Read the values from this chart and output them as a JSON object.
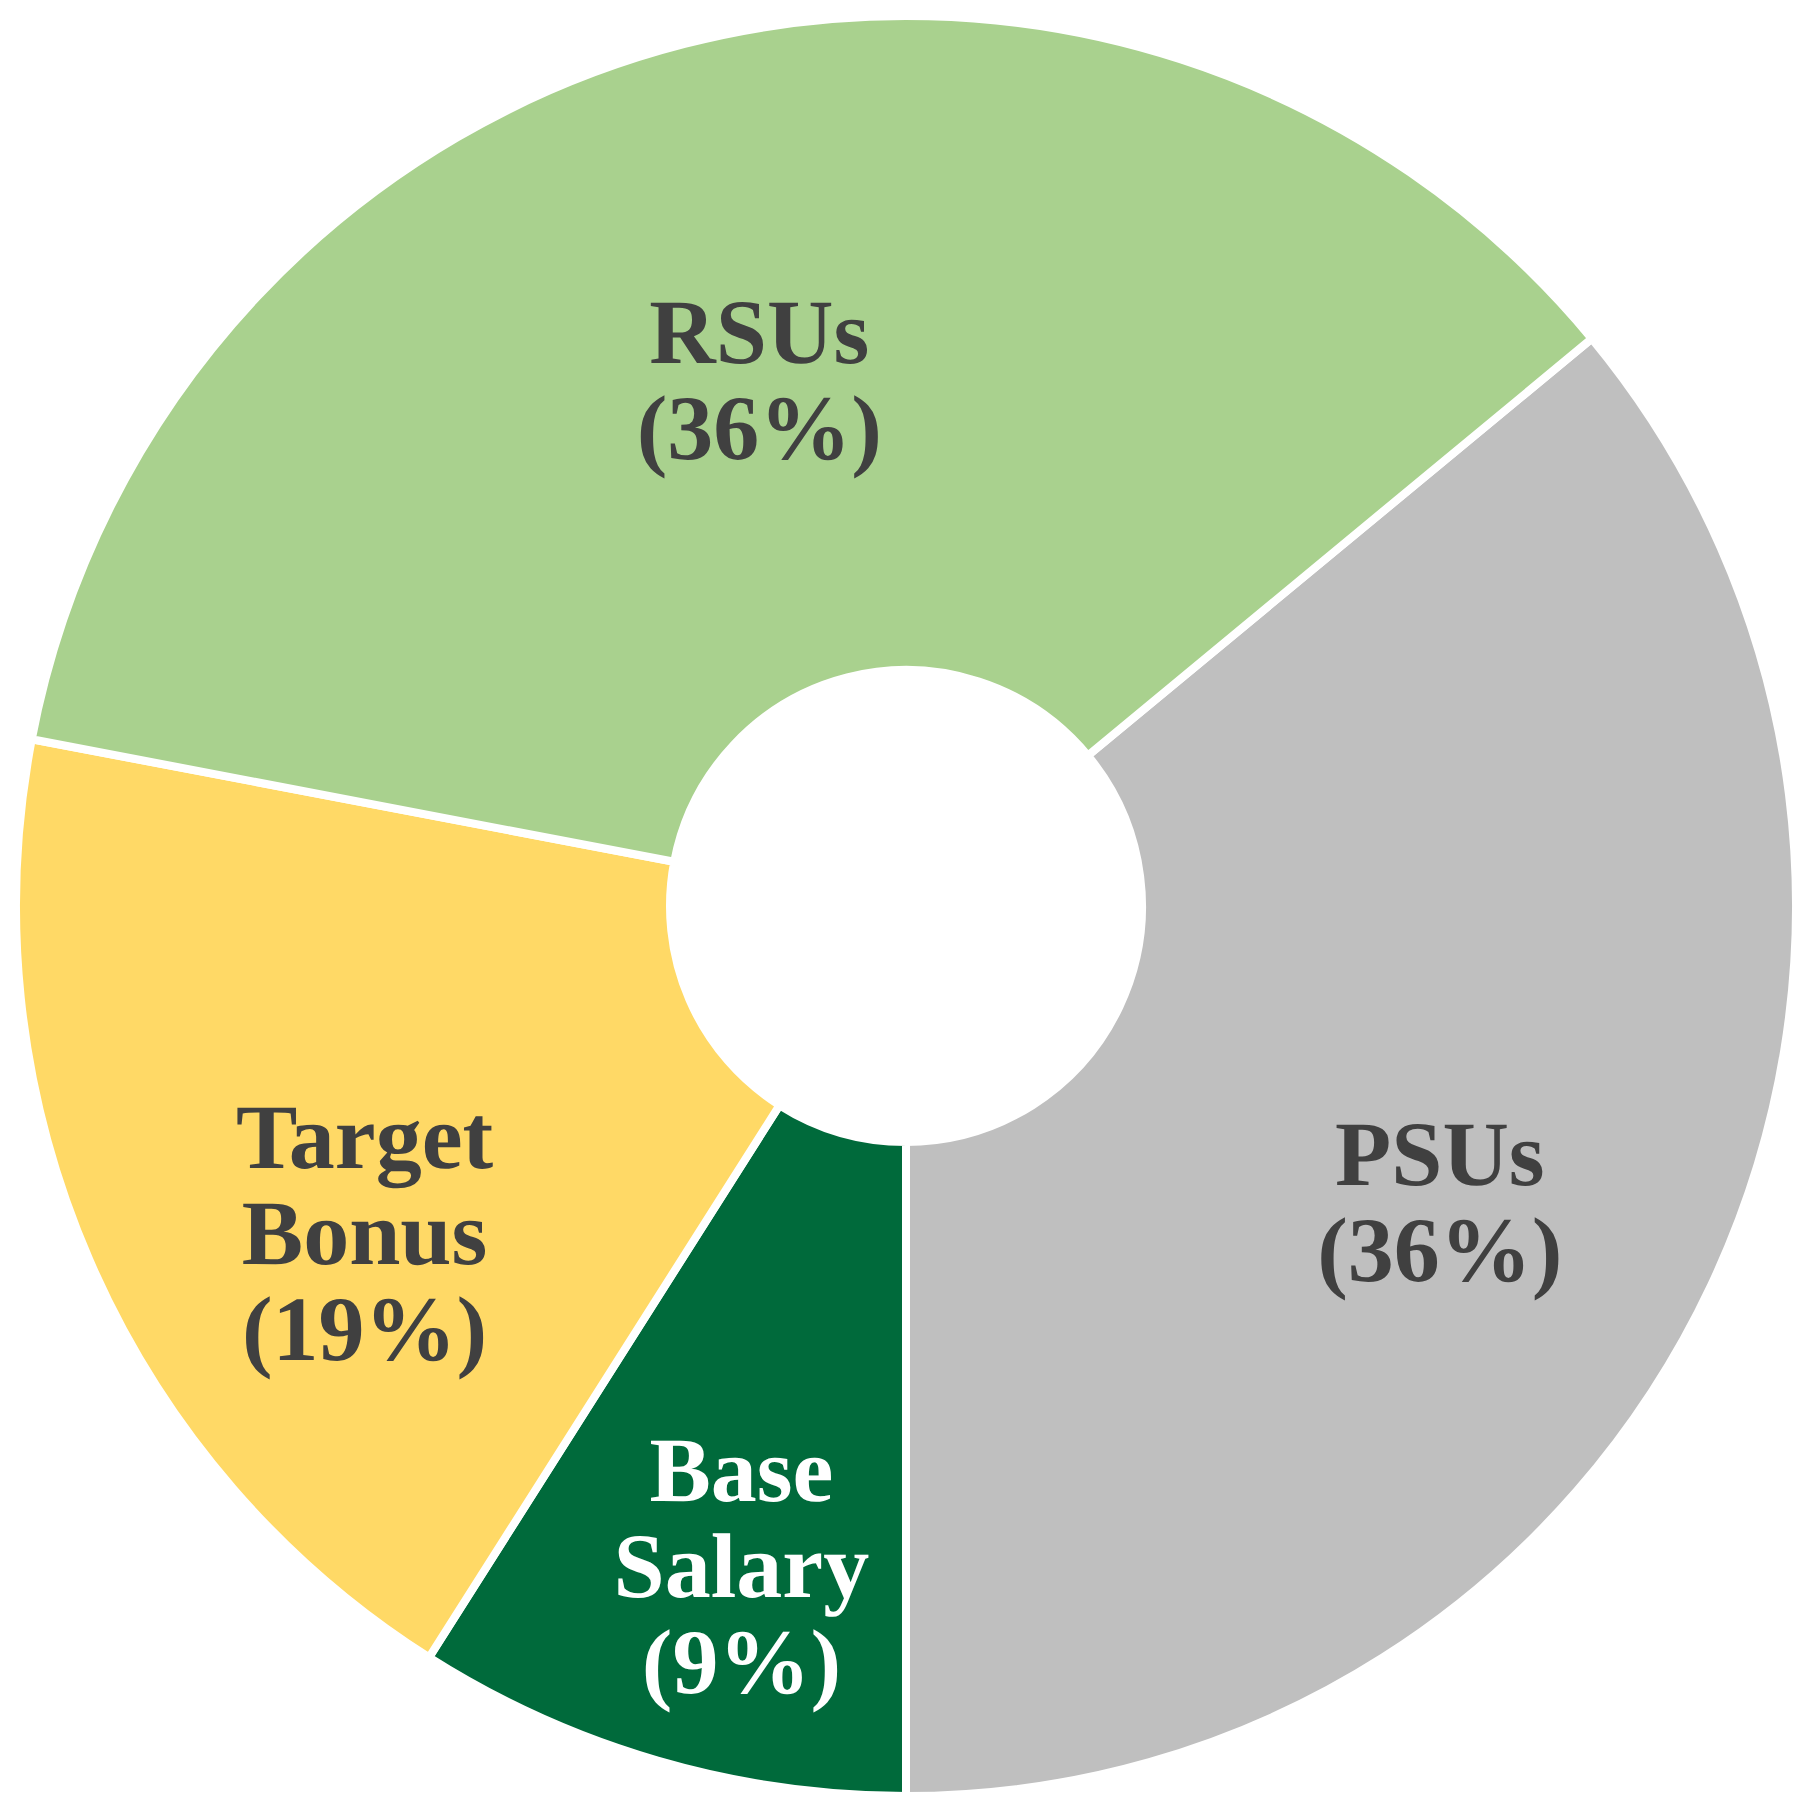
{
  "chart_data": {
    "type": "donut",
    "categories": [
      "PSUs",
      "Base Salary",
      "Target Bonus",
      "RSUs"
    ],
    "values": [
      36,
      9,
      19,
      36
    ],
    "colors": [
      "#bfbfbf",
      "#006a3b",
      "#ffd966",
      "#a9d18e"
    ],
    "value_labels": [
      "(36%)",
      "(9%)",
      "(19%)",
      "(36%)"
    ]
  }
}
